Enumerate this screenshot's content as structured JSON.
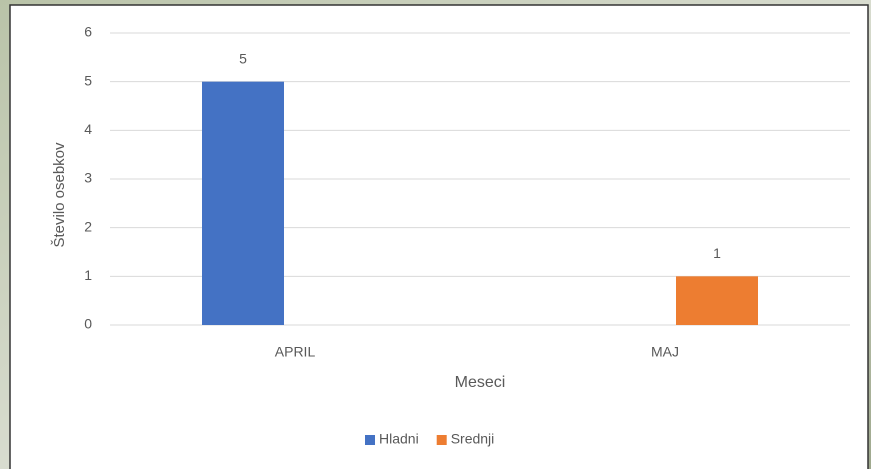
{
  "chart_data": {
    "type": "bar",
    "categories": [
      "APRIL",
      "MAJ"
    ],
    "series": [
      {
        "name": "Hladni",
        "color": "#4472c4",
        "values": [
          5,
          null
        ]
      },
      {
        "name": "Srednji",
        "color": "#ed7d31",
        "values": [
          null,
          1
        ]
      }
    ],
    "xlabel": "Meseci",
    "ylabel": "Število osebkov",
    "ylim": [
      0,
      6
    ],
    "yticks": [
      0,
      1,
      2,
      3,
      4,
      5,
      6
    ],
    "grid": true,
    "legend": "bottom"
  }
}
